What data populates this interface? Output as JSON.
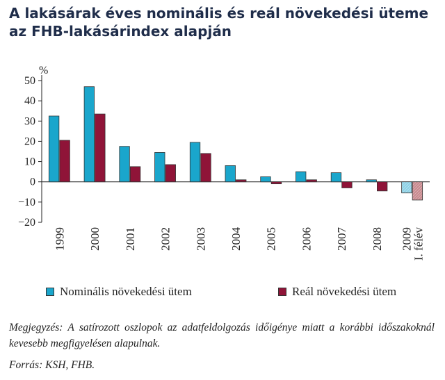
{
  "title": "A lakásárak éves nominális és reál növekedési üteme az FHB-lakásárindex alapján",
  "colors": {
    "nominal": "#1aa6cc",
    "real": "#8f1438",
    "nominal_hatched": "#8fd2e6",
    "real_hatched": "#c98a8f",
    "title": "#1f2d4a"
  },
  "legend": {
    "nominal": "Nominális növekedési ütem",
    "real": "Reál növekedési ütem"
  },
  "note": "Megjegyzés: A satírozott oszlopok az adatfeldolgozás időigénye miatt a korábbi időszakoknál kevesebb megfigyelésen alapulnak.",
  "source": "Forrás: KSH, FHB.",
  "chart_data": {
    "type": "bar",
    "ylabel": "%",
    "ylim": [
      -20,
      50
    ],
    "yticks": [
      -20,
      -10,
      0,
      10,
      20,
      30,
      40,
      50
    ],
    "categories": [
      [
        "1999"
      ],
      [
        "2000"
      ],
      [
        "2001"
      ],
      [
        "2002"
      ],
      [
        "2003"
      ],
      [
        "2004"
      ],
      [
        "2005"
      ],
      [
        "2006"
      ],
      [
        "2007"
      ],
      [
        "2008"
      ],
      [
        "2009",
        "I. félév"
      ]
    ],
    "series": [
      {
        "name": "Nominális növekedési ütem",
        "values": [
          32.5,
          47,
          17.5,
          14.5,
          19.5,
          8,
          2.5,
          5,
          4.5,
          1,
          -5.5
        ]
      },
      {
        "name": "Reál növekedési ütem",
        "values": [
          20.5,
          33.5,
          7.5,
          8.5,
          14,
          1,
          -1,
          1,
          -3,
          -4.5,
          -9
        ]
      }
    ],
    "hatched_categories": [
      "2009 I. félév"
    ],
    "grid": false,
    "legend_position": "bottom"
  }
}
